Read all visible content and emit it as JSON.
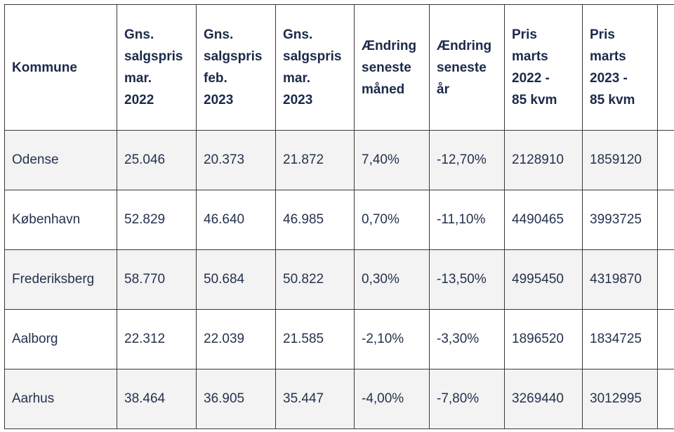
{
  "table": {
    "headers": [
      [
        "Kommune"
      ],
      [
        "Gns.",
        "salgspris",
        "mar.",
        "2022"
      ],
      [
        "Gns.",
        "salgspris",
        "feb.",
        "2023"
      ],
      [
        "Gns.",
        "salgspris",
        "mar.",
        "2023"
      ],
      [
        "Ændring",
        "seneste",
        "måned"
      ],
      [
        "Ændring",
        "seneste",
        "år"
      ],
      [
        "Pris",
        "marts",
        "2022 -",
        "85 kvm"
      ],
      [
        "Pris",
        "marts",
        "2023 -",
        "85 kvm"
      ]
    ],
    "rows": [
      [
        "Odense",
        "25.046",
        "20.373",
        "21.872",
        "7,40%",
        "-12,70%",
        "2128910",
        "1859120"
      ],
      [
        "København",
        "52.829",
        "46.640",
        "46.985",
        "0,70%",
        "-11,10%",
        "4490465",
        "3993725"
      ],
      [
        "Frederiksberg",
        "58.770",
        "50.684",
        "50.822",
        "0,30%",
        "-13,50%",
        "4995450",
        "4319870"
      ],
      [
        "Aalborg",
        "22.312",
        "22.039",
        "21.585",
        "-2,10%",
        "-3,30%",
        "1896520",
        "1834725"
      ],
      [
        "Aarhus",
        "38.464",
        "36.905",
        "35.447",
        "-4,00%",
        "-7,80%",
        "3269440",
        "3012995"
      ]
    ]
  },
  "colors": {
    "border": "#3a3a3a",
    "header_text": "#1b2a4a",
    "cell_text": "#25324d",
    "stripe": "#f3f3f3"
  }
}
